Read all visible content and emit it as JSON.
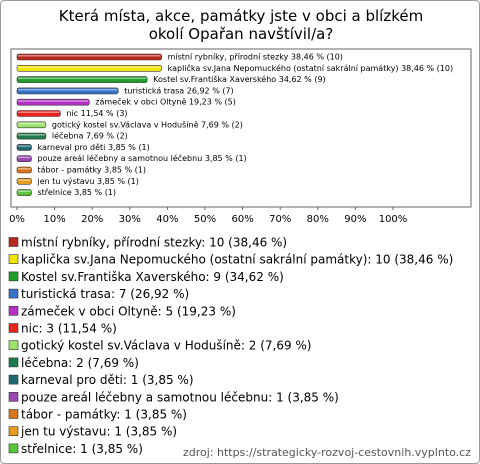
{
  "chart_data": {
    "type": "barh",
    "title": "Která místa, akce, památky jste v obci a blízkém okolí Opařan navštívil/a?",
    "categories": [
      "místní rybníky, přírodní stezky",
      "kaplička sv.Jana Nepomuckého (ostatní sakrální památky)",
      "Kostel sv.Františka Xaverského",
      "turistická trasa",
      "zámeček v obci Oltyně",
      "nic",
      "gotický kostel sv.Václava v Hodušíně",
      "léčebna",
      "karneval pro děti",
      "pouze areál léčebny a samotnou léčebnu",
      "tábor - památky",
      "jen tu výstavu",
      "střelnice"
    ],
    "values": [
      38.46,
      38.46,
      34.62,
      26.92,
      19.23,
      11.54,
      7.69,
      7.69,
      3.85,
      3.85,
      3.85,
      3.85,
      3.85
    ],
    "counts": [
      10,
      10,
      9,
      7,
      5,
      3,
      2,
      2,
      1,
      1,
      1,
      1,
      1
    ],
    "value_labels": [
      "místní rybníky, přírodní stezky 38,46 % (10)",
      "kaplička sv.Jana Nepomuckého (ostatní sakrální památky) 38,46 % (10)",
      "Kostel sv.Františka Xaverského 34,62 % (9)",
      "turistická trasa 26,92 % (7)",
      "zámeček v obci Oltyně 19,23 % (5)",
      "nic 11,54 % (3)",
      "gotický kostel sv.Václava v Hodušíně 7,69 % (2)",
      "léčebna 7,69 % (2)",
      "karneval pro děti 3,85 % (1)",
      "pouze areál léčebny a samotnou léčebnu 3,85 % (1)",
      "tábor - památky 3,85 % (1)",
      "jen tu výstavu 3,85 % (1)",
      "střelnice 3,85 % (1)"
    ],
    "legend_labels": [
      "místní rybníky, přírodní stezky: 10 (38,46 %)",
      "kaplička sv.Jana Nepomuckého (ostatní sakrální památky): 10 (38,46 %)",
      "Kostel sv.Františka Xaverského: 9 (34,62 %)",
      "turistická trasa: 7 (26,92 %)",
      "zámeček v obci Oltyně: 5 (19,23 %)",
      "nic: 3 (11,54 %)",
      "gotický kostel sv.Václava v Hodušíně: 2 (7,69 %)",
      "léčebna: 2 (7,69 %)",
      "karneval pro děti: 1 (3,85 %)",
      "pouze areál léčebny a samotnou léčebnu: 1 (3,85 %)",
      "tábor - památky: 1 (3,85 %)",
      "jen tu výstavu: 1 (3,85 %)",
      "střelnice: 1 (3,85 %)"
    ],
    "colors": [
      "#b8281e",
      "#f2e600",
      "#1f9e2a",
      "#3572c9",
      "#b52fc4",
      "#e8231c",
      "#9be36a",
      "#1f7a4f",
      "#1f6670",
      "#9a47b0",
      "#d9731c",
      "#e89a1c",
      "#58c43a"
    ],
    "xlim": [
      0,
      100
    ],
    "xticks": [
      {
        "value": 0,
        "label": "0%"
      },
      {
        "value": 10,
        "label": "10%"
      },
      {
        "value": 20,
        "label": "20%"
      },
      {
        "value": 30,
        "label": "30%"
      },
      {
        "value": 40,
        "label": "40%"
      },
      {
        "value": 50,
        "label": "50%"
      },
      {
        "value": 60,
        "label": "60%"
      },
      {
        "value": 70,
        "label": "70%"
      },
      {
        "value": 80,
        "label": "80%"
      },
      {
        "value": 90,
        "label": "90%"
      },
      {
        "value": 100,
        "label": "100%"
      }
    ],
    "source": "zdroj: https://strategicky-rozvoj-cestovnih.vyplnto.cz"
  }
}
